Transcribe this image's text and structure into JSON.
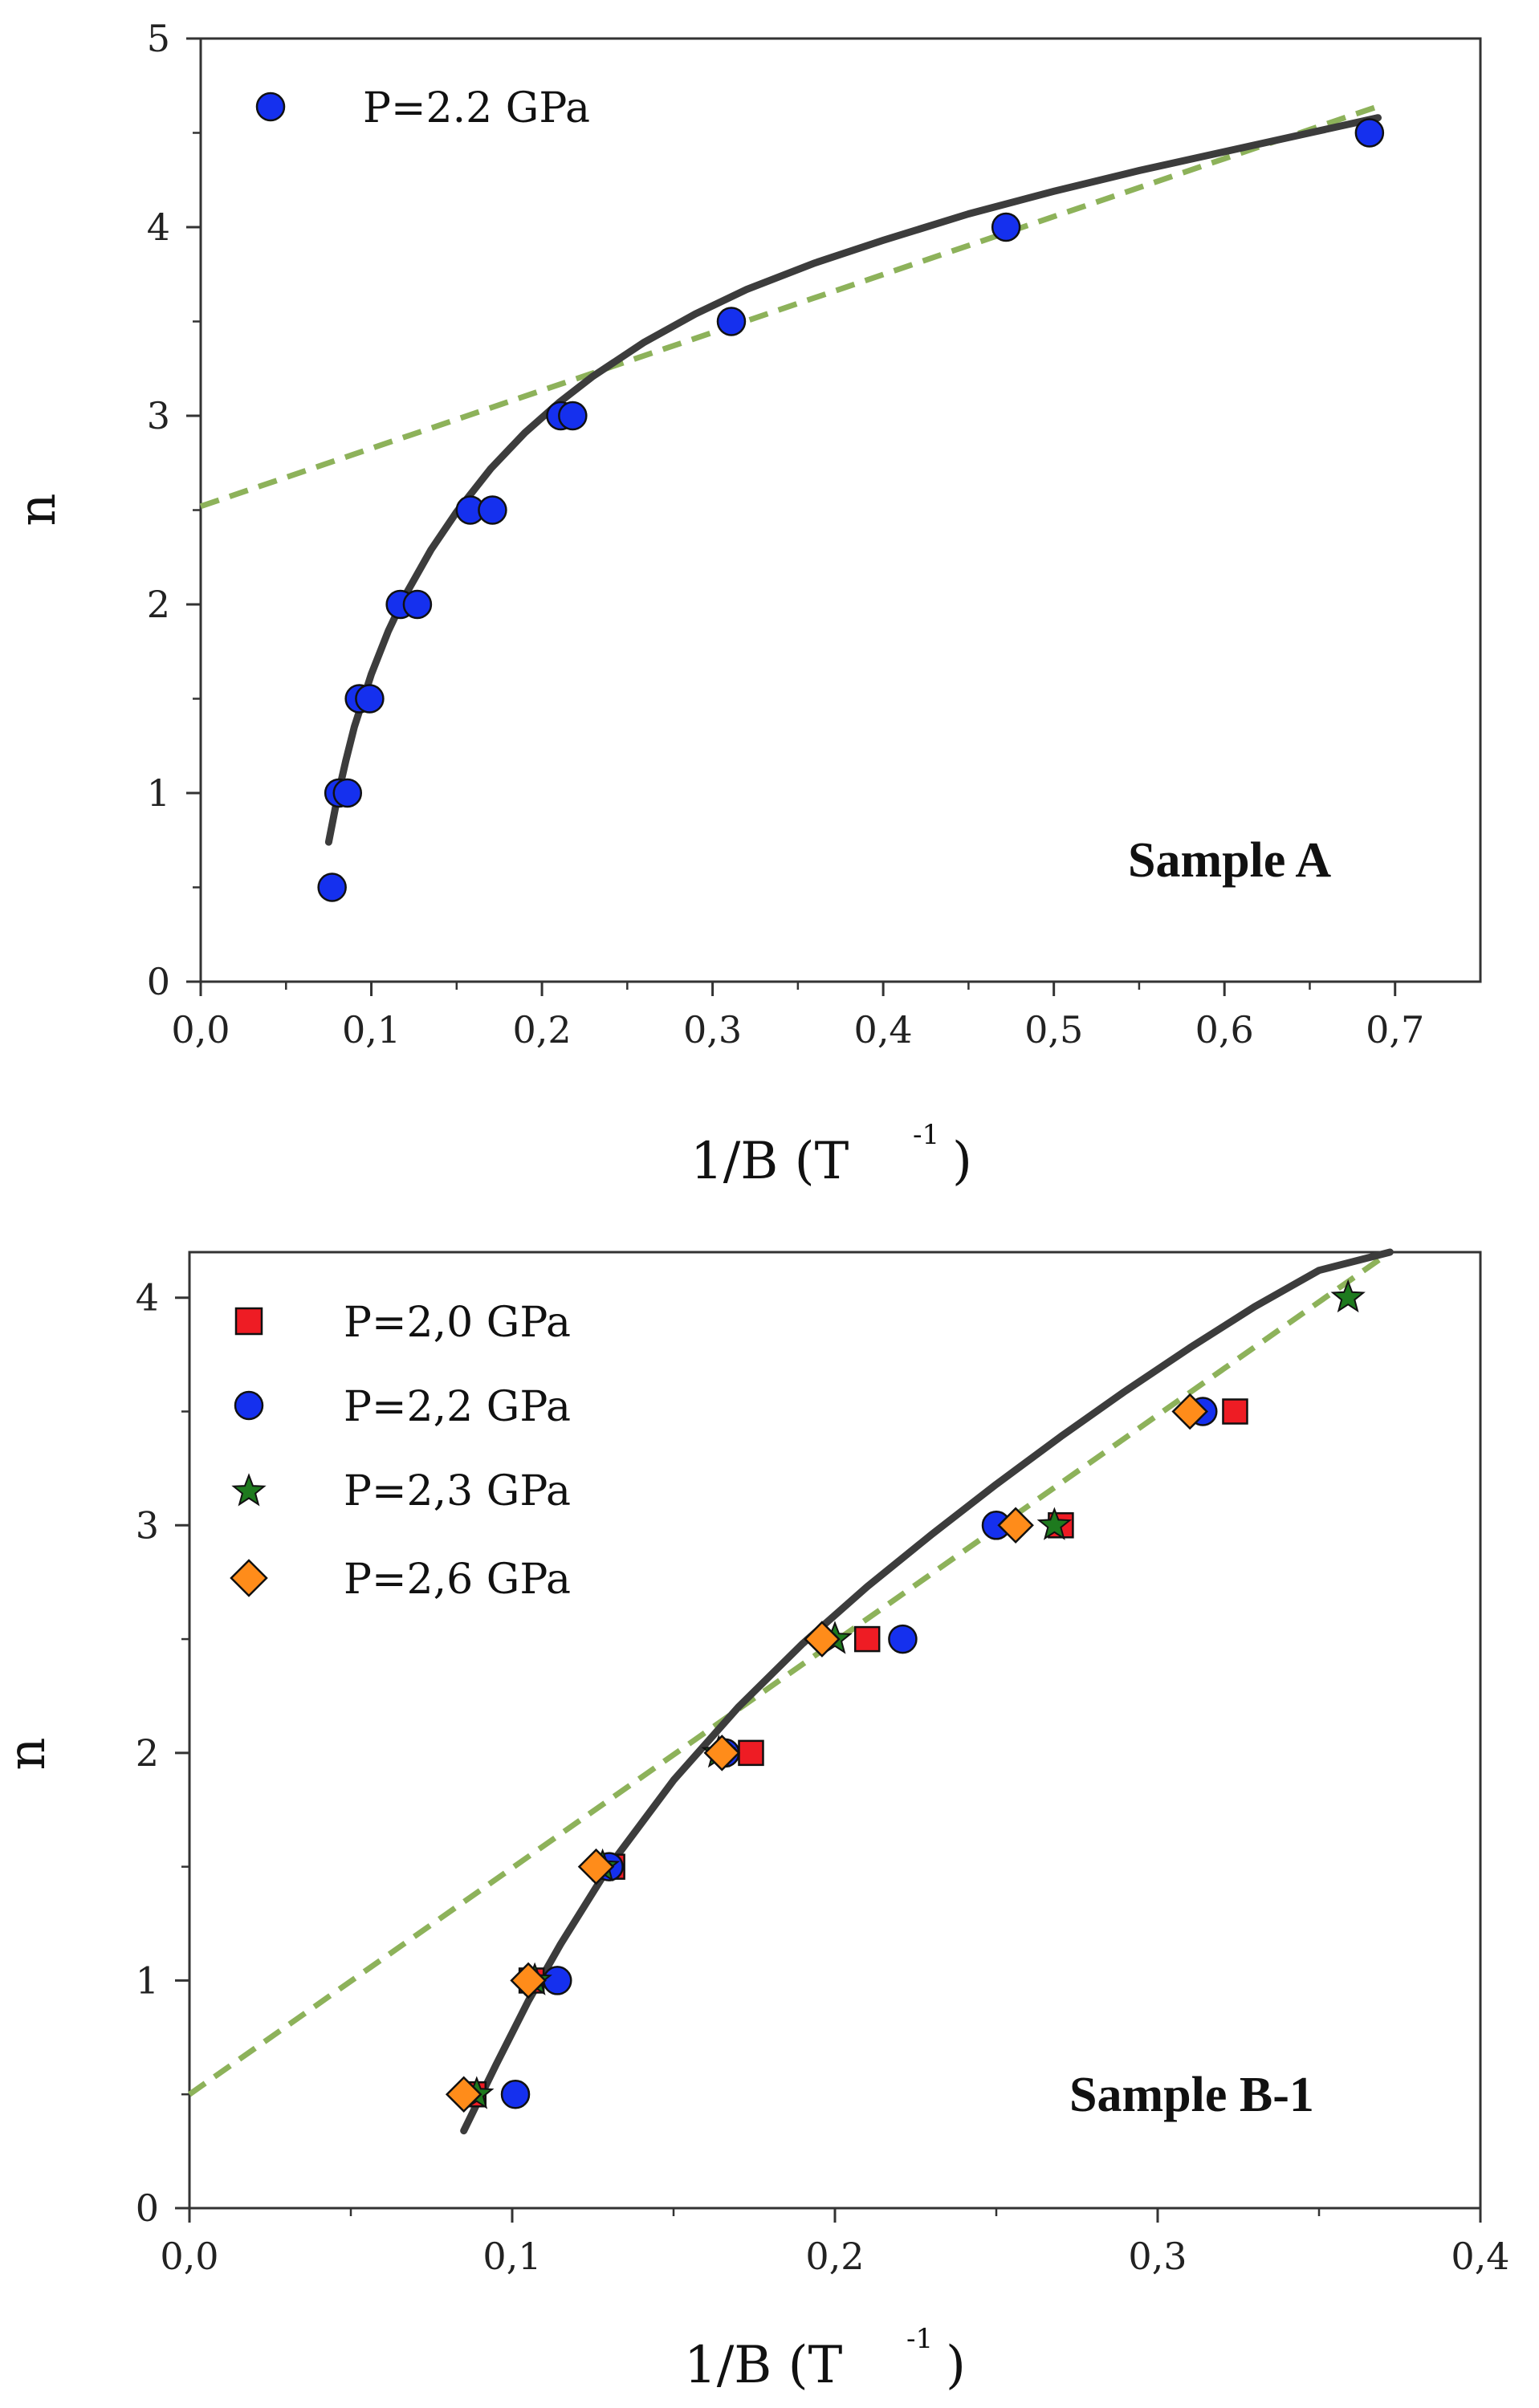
{
  "chart_data": [
    {
      "type": "scatter",
      "xlabel": "1/B (T",
      "xlabel_sup": "-1",
      "xlabel_close": ")",
      "ylabel": "n",
      "xlim": [
        0,
        0.75
      ],
      "ylim": [
        0,
        5
      ],
      "xticks": [
        0,
        0.1,
        0.2,
        0.3,
        0.4,
        0.5,
        0.6,
        0.7
      ],
      "xtick_labels": [
        "0,0",
        "0,1",
        "0,2",
        "0,3",
        "0,4",
        "0,5",
        "0,6",
        "0,7"
      ],
      "yticks": [
        0,
        1,
        2,
        3,
        4,
        5
      ],
      "ytick_labels": [
        "0",
        "1",
        "2",
        "3",
        "4",
        "5"
      ],
      "annotation": "Sample A",
      "legend_position": "top-left",
      "series": [
        {
          "name": "P=2.2 GPa",
          "marker": "circle",
          "color": "#1530ee",
          "x": [
            0.077,
            0.081,
            0.086,
            0.093,
            0.099,
            0.117,
            0.127,
            0.158,
            0.171,
            0.211,
            0.218,
            0.311,
            0.472,
            0.685
          ],
          "y": [
            0.5,
            1.0,
            1.0,
            1.5,
            1.5,
            2.0,
            2.0,
            2.5,
            2.5,
            3.0,
            3.0,
            3.5,
            4.0,
            4.5
          ]
        }
      ],
      "fit_solid": {
        "color": "#3c3c3c",
        "x": [
          0.075,
          0.08,
          0.085,
          0.09,
          0.1,
          0.11,
          0.12,
          0.135,
          0.15,
          0.17,
          0.19,
          0.21,
          0.23,
          0.26,
          0.29,
          0.32,
          0.36,
          0.4,
          0.45,
          0.5,
          0.55,
          0.6,
          0.65,
          0.69
        ],
        "y": [
          0.74,
          0.97,
          1.17,
          1.35,
          1.63,
          1.86,
          2.05,
          2.29,
          2.49,
          2.72,
          2.91,
          3.07,
          3.21,
          3.39,
          3.54,
          3.67,
          3.81,
          3.93,
          4.07,
          4.19,
          4.3,
          4.4,
          4.5,
          4.58
        ]
      },
      "fit_dashed": {
        "color": "#8db25a",
        "x": [
          0,
          0.69
        ],
        "y": [
          2.52,
          4.64
        ]
      }
    },
    {
      "type": "scatter",
      "xlabel": "1/B (T",
      "xlabel_sup": "-1",
      "xlabel_close": ")",
      "ylabel": "n",
      "xlim": [
        0,
        0.4
      ],
      "ylim": [
        0,
        4.2
      ],
      "xticks": [
        0,
        0.1,
        0.2,
        0.3,
        0.4
      ],
      "xtick_labels": [
        "0,0",
        "0,1",
        "0,2",
        "0,3",
        "0,4"
      ],
      "yticks": [
        0,
        1,
        2,
        3,
        4
      ],
      "ytick_labels": [
        "0",
        "1",
        "2",
        "3",
        "4"
      ],
      "annotation": "Sample B-1",
      "legend_position": "top-left",
      "series": [
        {
          "name": "P=2,0 GPa",
          "marker": "square",
          "color": "#ee1c24",
          "x": [
            0.088,
            0.106,
            0.131,
            0.174,
            0.21,
            0.27,
            0.324
          ],
          "y": [
            0.5,
            1.0,
            1.5,
            2.0,
            2.5,
            3.0,
            3.5
          ]
        },
        {
          "name": "P=2,2 GPa",
          "marker": "circle",
          "color": "#1530ee",
          "x": [
            0.101,
            0.114,
            0.13,
            0.166,
            0.221,
            0.25,
            0.314
          ],
          "y": [
            0.5,
            1.0,
            1.5,
            2.0,
            2.5,
            3.0,
            3.5
          ]
        },
        {
          "name": "P=2,3 GPa",
          "marker": "star",
          "color": "#1e7a1e",
          "x": [
            0.089,
            0.107,
            0.128,
            0.164,
            0.2,
            0.268,
            0.359
          ],
          "y": [
            0.5,
            1.0,
            1.5,
            2.0,
            2.5,
            3.0,
            4.0
          ]
        },
        {
          "name": "P=2,6 GPa",
          "marker": "diamond",
          "color": "#ff8c1a",
          "x": [
            0.085,
            0.105,
            0.126,
            0.165,
            0.196,
            0.256,
            0.31
          ],
          "y": [
            0.5,
            1.0,
            1.5,
            2.0,
            2.5,
            3.0,
            3.5
          ]
        }
      ],
      "fit_solid": {
        "color": "#3c3c3c",
        "x": [
          0.085,
          0.095,
          0.105,
          0.115,
          0.13,
          0.15,
          0.17,
          0.19,
          0.21,
          0.23,
          0.25,
          0.27,
          0.29,
          0.31,
          0.33,
          0.35,
          0.372
        ],
        "y": [
          0.34,
          0.63,
          0.91,
          1.16,
          1.5,
          1.88,
          2.2,
          2.48,
          2.73,
          2.96,
          3.18,
          3.39,
          3.59,
          3.78,
          3.96,
          4.12,
          4.2
        ]
      },
      "fit_dashed": {
        "color": "#8db25a",
        "x": [
          0,
          0.372
        ],
        "y": [
          0.5,
          4.2
        ]
      }
    }
  ]
}
